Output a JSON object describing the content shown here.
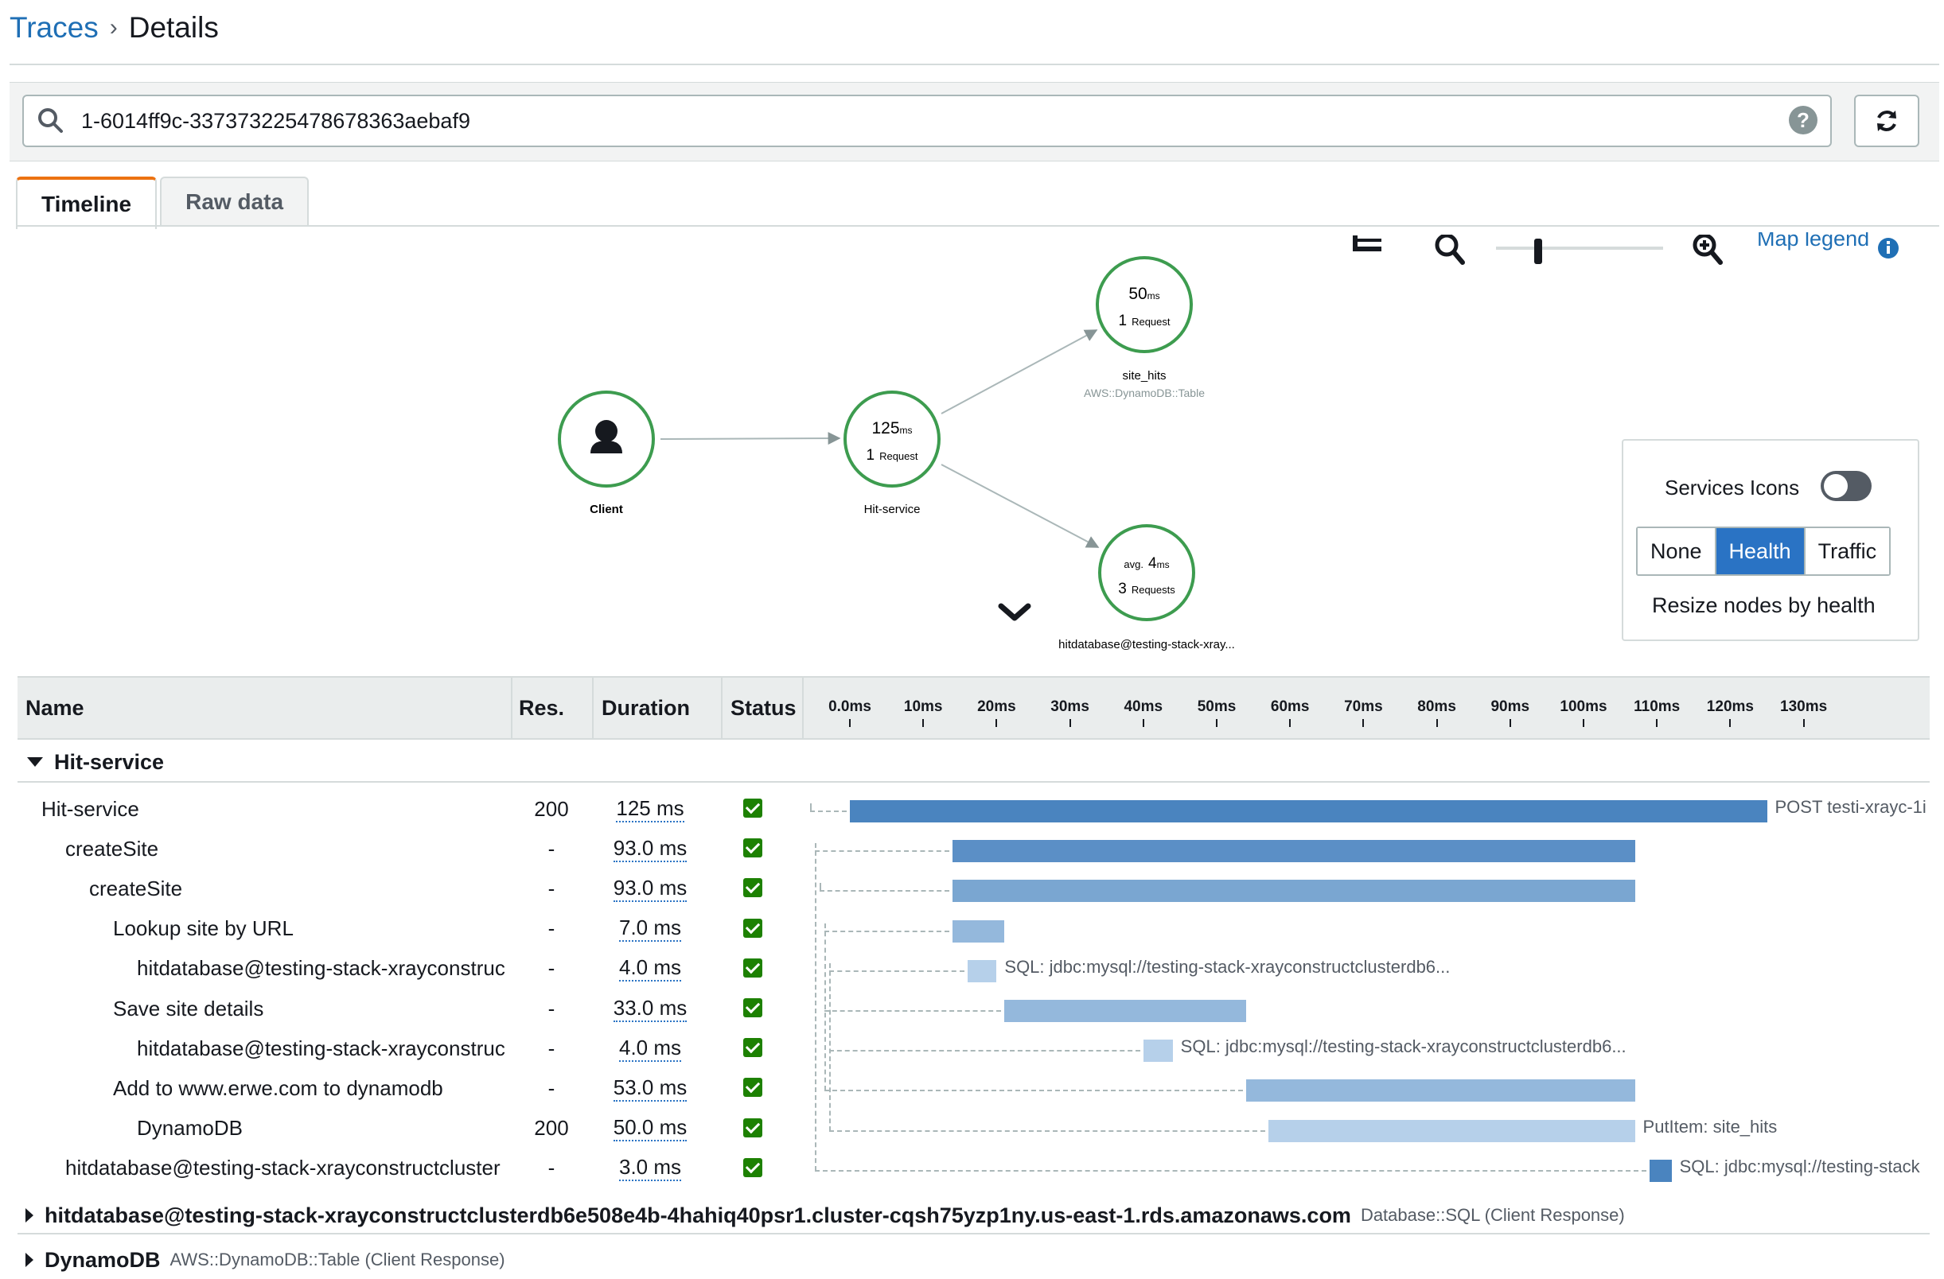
{
  "breadcrumb": {
    "parent": "Traces",
    "separator": "›",
    "current": "Details"
  },
  "search": {
    "value": "1-6014ff9c-337373225478678363aebaf9",
    "help": "?"
  },
  "tabs": [
    {
      "label": "Timeline",
      "active": true
    },
    {
      "label": "Raw data",
      "active": false
    }
  ],
  "map": {
    "legend_link": "Map legend",
    "nodes": {
      "client": {
        "label": "Client"
      },
      "hit_service": {
        "value": "125",
        "unit": "ms",
        "count": "1",
        "count_unit": "Request",
        "label": "Hit-service"
      },
      "site_hits": {
        "value": "50",
        "unit": "ms",
        "count": "1",
        "count_unit": "Request",
        "label": "site_hits",
        "type": "AWS::DynamoDB::Table"
      },
      "hitdatabase": {
        "prefix": "avg.",
        "value": "4",
        "unit": "ms",
        "count": "3",
        "count_unit": "Requests",
        "label": "hitdatabase@testing-stack-xray..."
      }
    },
    "colors": {
      "healthy": "#1d8102",
      "edge": "#aab7b8"
    }
  },
  "legend_panel": {
    "services_icons_label": "Services Icons",
    "services_icons_on": false,
    "modes": [
      "None",
      "Health",
      "Traffic"
    ],
    "active_mode": "Health",
    "note": "Resize nodes by health"
  },
  "table": {
    "headers": {
      "name": "Name",
      "res": "Res.",
      "duration": "Duration",
      "status": "Status"
    },
    "ticks": [
      "0.0ms",
      "10ms",
      "20ms",
      "30ms",
      "40ms",
      "50ms",
      "60ms",
      "70ms",
      "80ms",
      "90ms",
      "100ms",
      "110ms",
      "120ms",
      "130ms"
    ],
    "groups": [
      {
        "name": "Hit-service",
        "expanded": true,
        "sub": ""
      },
      {
        "name": "hitdatabase@testing-stack-xrayconstructclusterdb6e508e4b-4hahiq40psr1.cluster-cqsh75yzp1ny.us-east-1.rds.amazonaws.com",
        "expanded": false,
        "sub": "Database::SQL (Client Response)"
      },
      {
        "name": "DynamoDB",
        "expanded": false,
        "sub": "AWS::DynamoDB::Table (Client Response)"
      }
    ],
    "rows": [
      {
        "name": "Hit-service",
        "depth": 0,
        "res": "200",
        "duration": "125 ms",
        "start": 0,
        "end": 125,
        "shade": "#4a84bf",
        "label": "POST testi-xrayc-1i"
      },
      {
        "name": "createSite",
        "depth": 1,
        "res": "-",
        "duration": "93.0 ms",
        "start": 14,
        "end": 107,
        "shade": "#5b8fc6",
        "label": ""
      },
      {
        "name": "createSite",
        "depth": 2,
        "res": "-",
        "duration": "93.0 ms",
        "start": 14,
        "end": 107,
        "shade": "#7aa6d1",
        "label": ""
      },
      {
        "name": "Lookup site by URL",
        "depth": 3,
        "res": "-",
        "duration": "7.0 ms",
        "start": 14,
        "end": 21,
        "shade": "#94b8dc",
        "label": ""
      },
      {
        "name": "hitdatabase@testing-stack-xrayconstruc",
        "depth": 4,
        "res": "-",
        "duration": "4.0 ms",
        "start": 16,
        "end": 20,
        "shade": "#b6d0ea",
        "label": "SQL: jdbc:mysql://testing-stack-xrayconstructclusterdb6..."
      },
      {
        "name": "Save site details",
        "depth": 3,
        "res": "-",
        "duration": "33.0 ms",
        "start": 21,
        "end": 54,
        "shade": "#94b8dc",
        "label": ""
      },
      {
        "name": "hitdatabase@testing-stack-xrayconstruc",
        "depth": 4,
        "res": "-",
        "duration": "4.0 ms",
        "start": 40,
        "end": 44,
        "shade": "#b6d0ea",
        "label": "SQL: jdbc:mysql://testing-stack-xrayconstructclusterdb6..."
      },
      {
        "name": "Add to www.erwe.com to dynamodb",
        "depth": 3,
        "res": "-",
        "duration": "53.0 ms",
        "start": 54,
        "end": 107,
        "shade": "#94b8dc",
        "label": ""
      },
      {
        "name": "DynamoDB",
        "depth": 4,
        "res": "200",
        "duration": "50.0 ms",
        "start": 57,
        "end": 107,
        "shade": "#b6d0ea",
        "label": "PutItem: site_hits"
      },
      {
        "name": "hitdatabase@testing-stack-xrayconstructcluster",
        "depth": 1,
        "res": "-",
        "duration": "3.0 ms",
        "start": 109,
        "end": 112,
        "shade": "#4a84bf",
        "label": "SQL: jdbc:mysql://testing-stack"
      }
    ]
  }
}
